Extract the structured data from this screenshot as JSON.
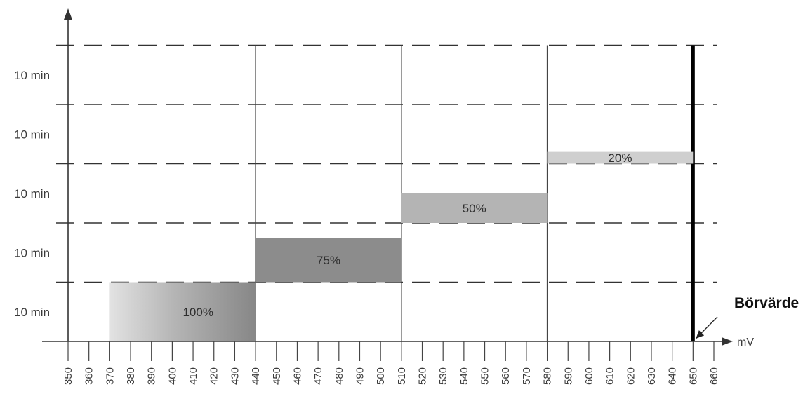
{
  "chart_data": {
    "type": "bar",
    "y_labels": [
      "10 min",
      "10 min",
      "10 min",
      "10 min",
      "10 min"
    ],
    "x_ticks": [
      350,
      360,
      370,
      380,
      390,
      400,
      410,
      420,
      430,
      440,
      450,
      460,
      470,
      480,
      490,
      500,
      510,
      520,
      530,
      540,
      550,
      560,
      570,
      580,
      590,
      600,
      610,
      620,
      630,
      640,
      650,
      660
    ],
    "x_unit": "mV",
    "xlim": [
      350,
      660
    ],
    "ylim": [
      0,
      5
    ],
    "bars": [
      {
        "label": "100%",
        "x_start": 370,
        "x_end": 440,
        "y_start": 0,
        "y_end": 1,
        "color": "#8a8a8a",
        "gradient": true
      },
      {
        "label": "75%",
        "x_start": 440,
        "x_end": 510,
        "y_start": 1,
        "y_end": 1.75,
        "color": "#8c8c8c"
      },
      {
        "label": "50%",
        "x_start": 510,
        "x_end": 580,
        "y_start": 2,
        "y_end": 2.5,
        "color": "#b4b4b4"
      },
      {
        "label": "20%",
        "x_start": 580,
        "x_end": 650,
        "y_start": 3,
        "y_end": 3.2,
        "color": "#cfcfcf"
      }
    ],
    "vertical_lines": [
      440,
      510,
      580
    ],
    "setpoint": {
      "x": 650,
      "label": "Börvärde"
    },
    "grid": "dashed-horizontal"
  }
}
